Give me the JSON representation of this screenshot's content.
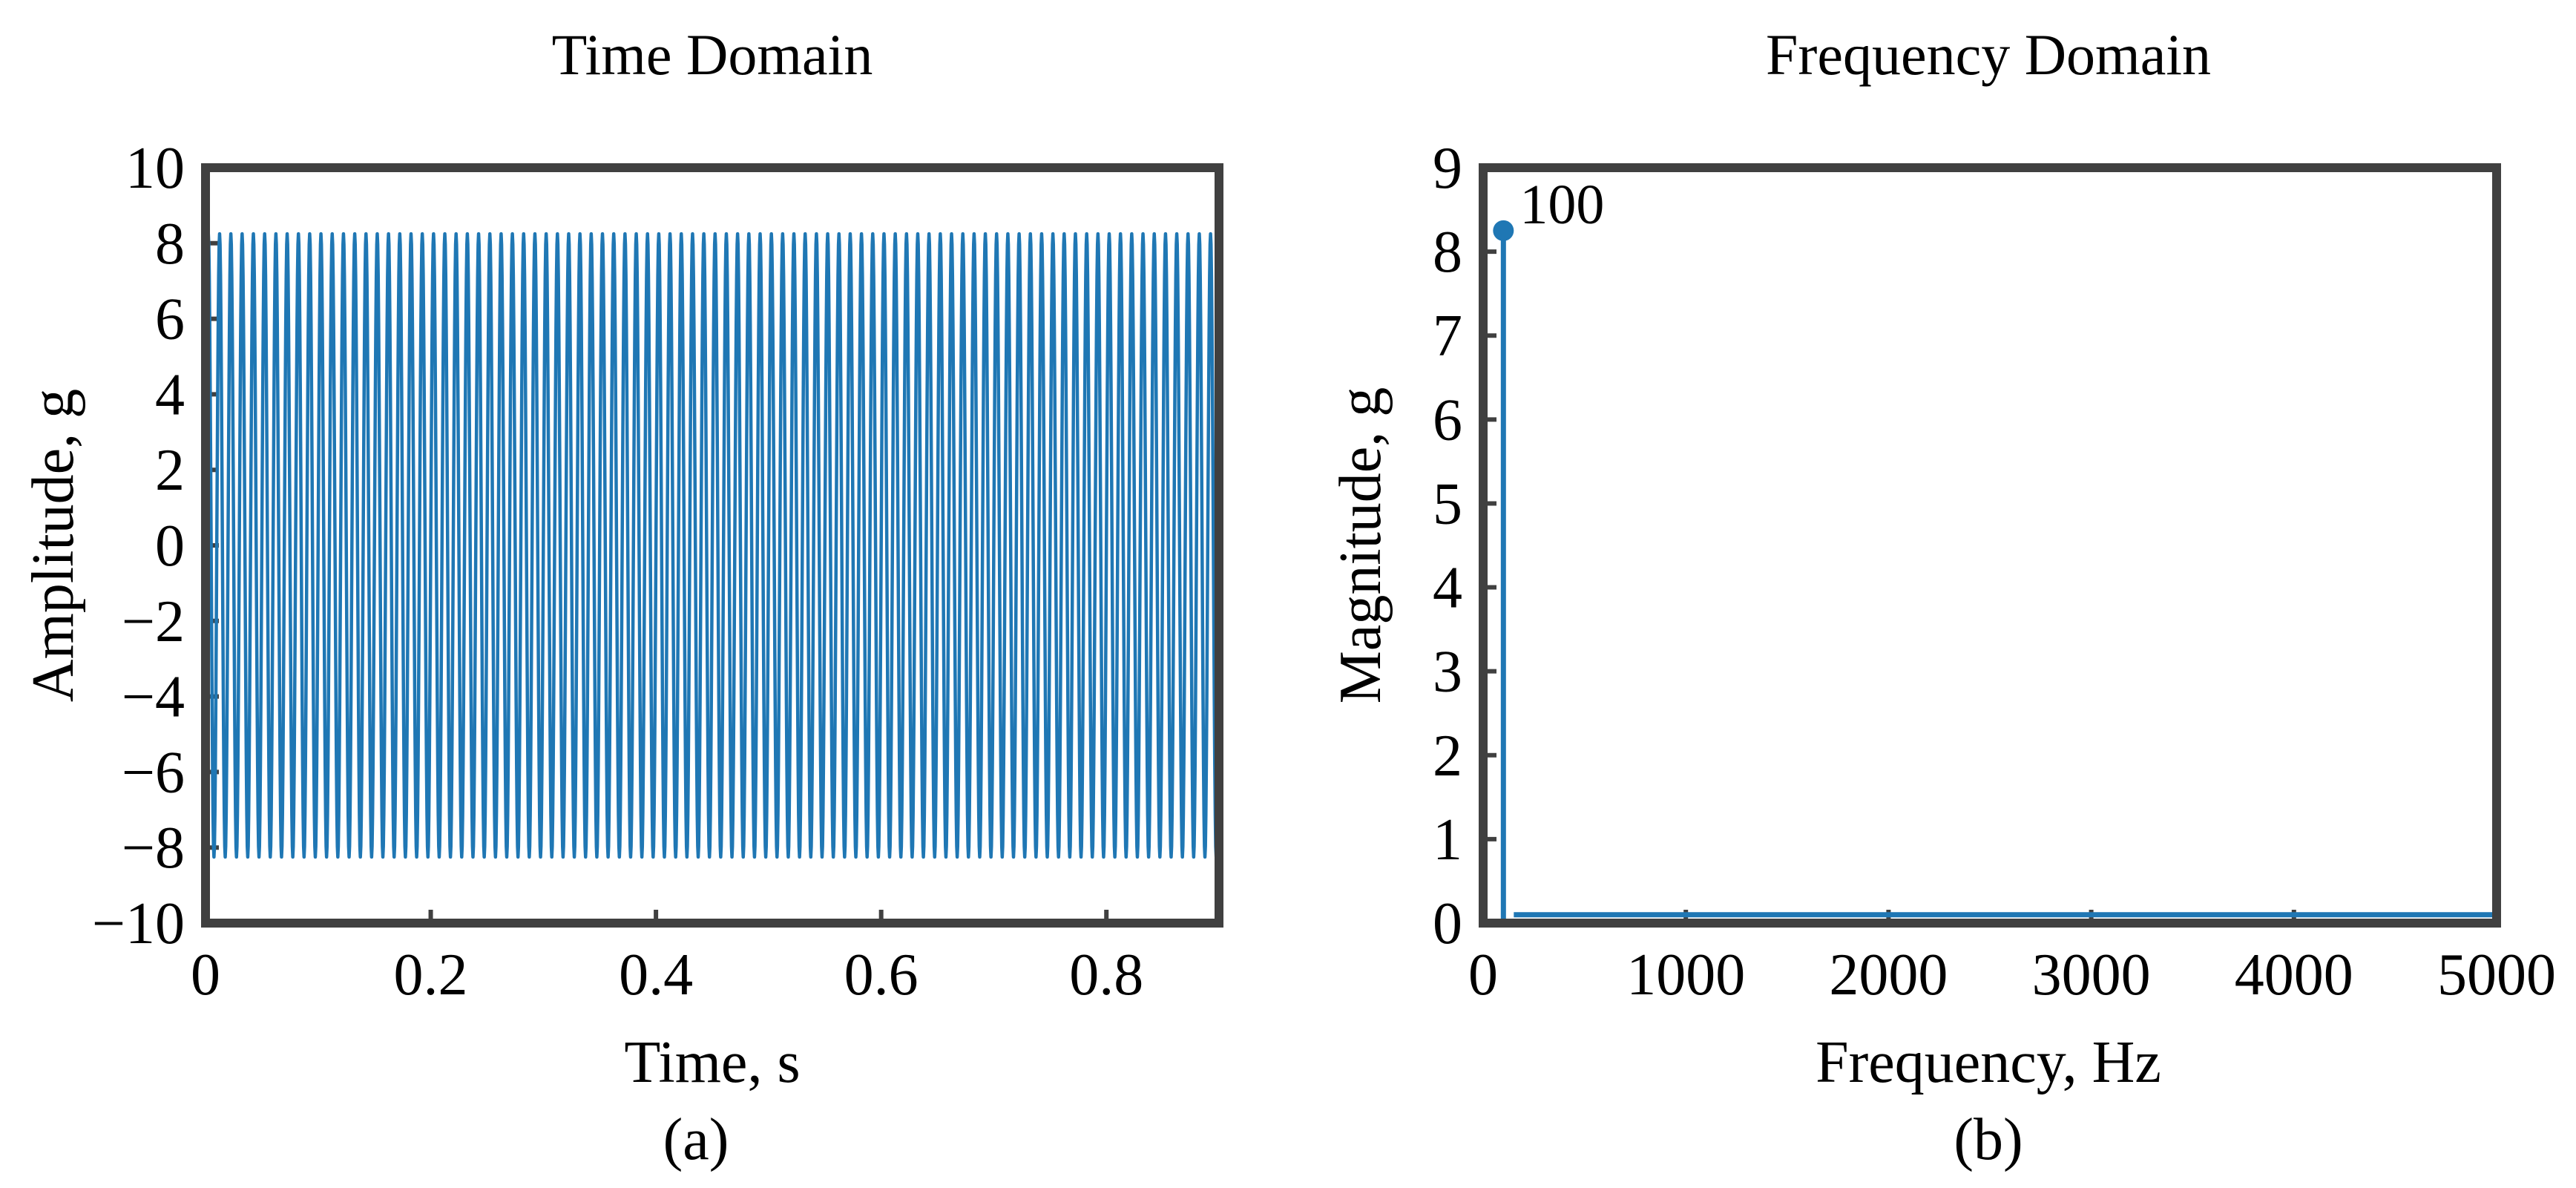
{
  "chart_data": [
    {
      "type": "line",
      "title": "Time Domain",
      "xlabel": "Time, s",
      "ylabel": "Amplitude, g",
      "caption": "(a)",
      "xlim": [
        0,
        0.9
      ],
      "ylim": [
        -10,
        10
      ],
      "xticks": [
        0,
        0.2,
        0.4,
        0.6,
        0.8
      ],
      "xtick_labels": [
        "0",
        "0.2",
        "0.4",
        "0.6",
        "0.8"
      ],
      "yticks": [
        -10,
        -8,
        -6,
        -4,
        -2,
        0,
        2,
        4,
        6,
        8,
        10
      ],
      "ytick_labels": [
        "−10",
        "−8",
        "−6",
        "−4",
        "−2",
        "0",
        "2",
        "4",
        "6",
        "8",
        "10"
      ],
      "grid": false,
      "series": [
        {
          "signal": "sine",
          "frequency_hz": 100,
          "amplitude": 8.25,
          "t_start": 0,
          "t_end": 0.9,
          "color": "#1f77b4"
        }
      ]
    },
    {
      "type": "stem",
      "title": "Frequency Domain",
      "xlabel": "Frequency, Hz",
      "ylabel": "Magnitude, g",
      "caption": "(b)",
      "xlim": [
        0,
        5000
      ],
      "ylim": [
        0,
        9
      ],
      "xticks": [
        0,
        1000,
        2000,
        3000,
        4000,
        5000
      ],
      "xtick_labels": [
        "0",
        "1000",
        "2000",
        "3000",
        "4000",
        "5000"
      ],
      "yticks": [
        0,
        1,
        2,
        3,
        4,
        5,
        6,
        7,
        8,
        9
      ],
      "ytick_labels": [
        "0",
        "1",
        "2",
        "3",
        "4",
        "5",
        "6",
        "7",
        "8",
        "9"
      ],
      "grid": false,
      "series": [
        {
          "x": [
            100
          ],
          "y": [
            8.25
          ],
          "baseline": 0.1,
          "color": "#1f77b4"
        }
      ],
      "annotations": [
        {
          "x": 100,
          "y": 8.25,
          "text": "100"
        }
      ]
    }
  ],
  "colors": {
    "series": "#1f77b4",
    "axes": "#404040"
  }
}
